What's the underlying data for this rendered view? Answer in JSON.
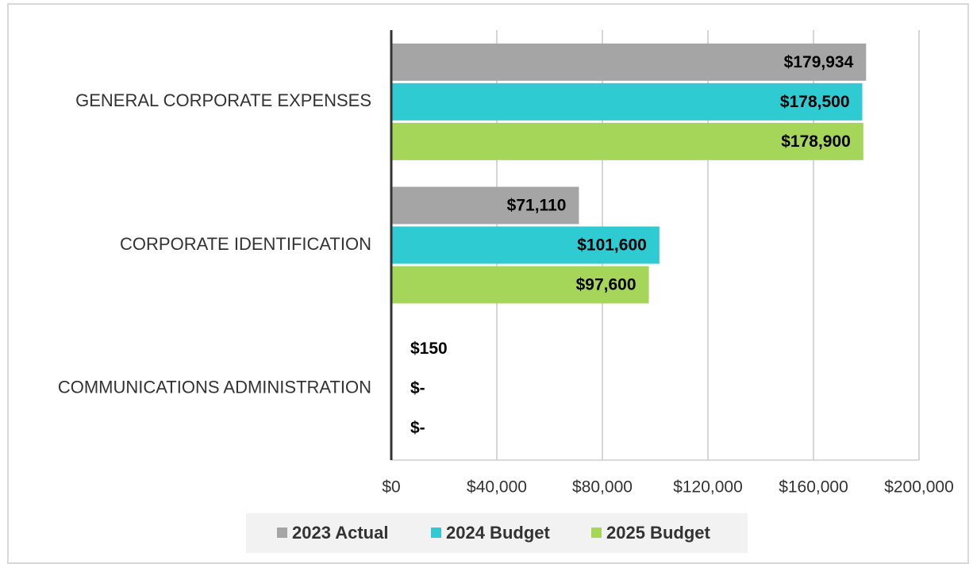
{
  "chart_data": {
    "type": "hbar",
    "categories": [
      "GENERAL CORPORATE EXPENSES",
      "CORPORATE IDENTIFICATION",
      "COMMUNICATIONS ADMINISTRATION"
    ],
    "series": [
      {
        "name": "2023 Actual",
        "color": "#a5a5a5",
        "values": [
          179934,
          71110,
          150
        ],
        "value_labels": [
          "$179,934",
          "$71,110",
          "$150"
        ]
      },
      {
        "name": "2024 Budget",
        "color": "#2ecbd3",
        "values": [
          178500,
          101600,
          0
        ],
        "value_labels": [
          "$178,500",
          "$101,600",
          "$-"
        ]
      },
      {
        "name": "2025 Budget",
        "color": "#a5d65a",
        "values": [
          178900,
          97600,
          0
        ],
        "value_labels": [
          "$178,900",
          "$97,600",
          "$-"
        ]
      }
    ],
    "xlim": [
      0,
      200000
    ],
    "xticks": [
      {
        "value": 0,
        "label": "$0"
      },
      {
        "value": 40000,
        "label": "$40,000"
      },
      {
        "value": 80000,
        "label": "$80,000"
      },
      {
        "value": 120000,
        "label": "$120,000"
      },
      {
        "value": 160000,
        "label": "$160,000"
      },
      {
        "value": 200000,
        "label": "$200,000"
      }
    ],
    "grid": true,
    "legend": "bottom"
  }
}
